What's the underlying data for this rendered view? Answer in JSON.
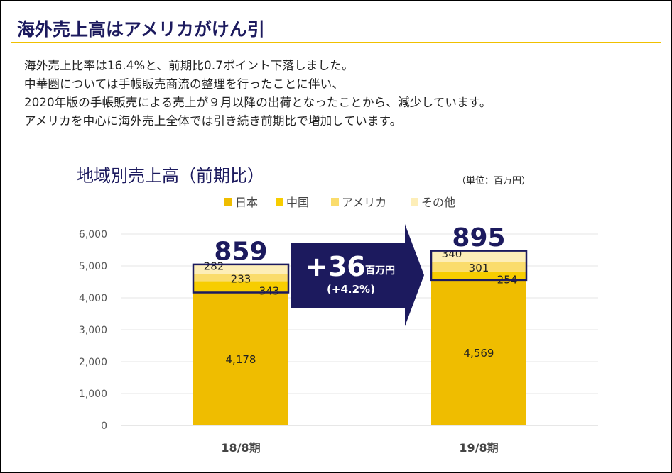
{
  "page": {
    "heading": "海外売上高はアメリカがけん引",
    "description": [
      "海外売上比率は16.4%と、前期比0.7ポイント下落しました。",
      "中華圏については手帳販売商流の整理を行ったことに伴い、",
      "2020年版の手帳販売による売上が９月以降の出荷となったことから、減少しています。",
      "アメリカを中心に海外売上全体では引き続き前期比で増加しています。"
    ]
  },
  "chart_data": {
    "type": "bar",
    "stacked": true,
    "title": "地域別売上高（前期比）",
    "unit": "（単位：百万円）",
    "categories": [
      "18/8期",
      "19/8期"
    ],
    "series": [
      {
        "name": "日本",
        "values": [
          4178,
          4569
        ],
        "color": "#efbd00"
      },
      {
        "name": "中国",
        "values": [
          343,
          254
        ],
        "color": "#f7cd00"
      },
      {
        "name": "アメリカ",
        "values": [
          233,
          301
        ],
        "color": "#fadc6c"
      },
      {
        "name": "その他",
        "values": [
          282,
          340
        ],
        "color": "#fdeeb8"
      }
    ],
    "segment_labels": [
      [
        "4,178",
        "343",
        "233",
        "282"
      ],
      [
        "4,569",
        "254",
        "301",
        "340"
      ]
    ],
    "overseas_totals": [
      "859",
      "895"
    ],
    "change": {
      "value": "+36",
      "unit": "百万円",
      "percent": "(+4.2%)"
    },
    "ylim": [
      0,
      6000
    ],
    "yticks": [
      0,
      1000,
      2000,
      3000,
      4000,
      5000,
      6000
    ],
    "ytick_labels": [
      "0",
      "1,000",
      "2,000",
      "3,000",
      "4,000",
      "5,000",
      "6,000"
    ],
    "grid": true,
    "legend": "top",
    "accent": "#1c1a5e"
  }
}
